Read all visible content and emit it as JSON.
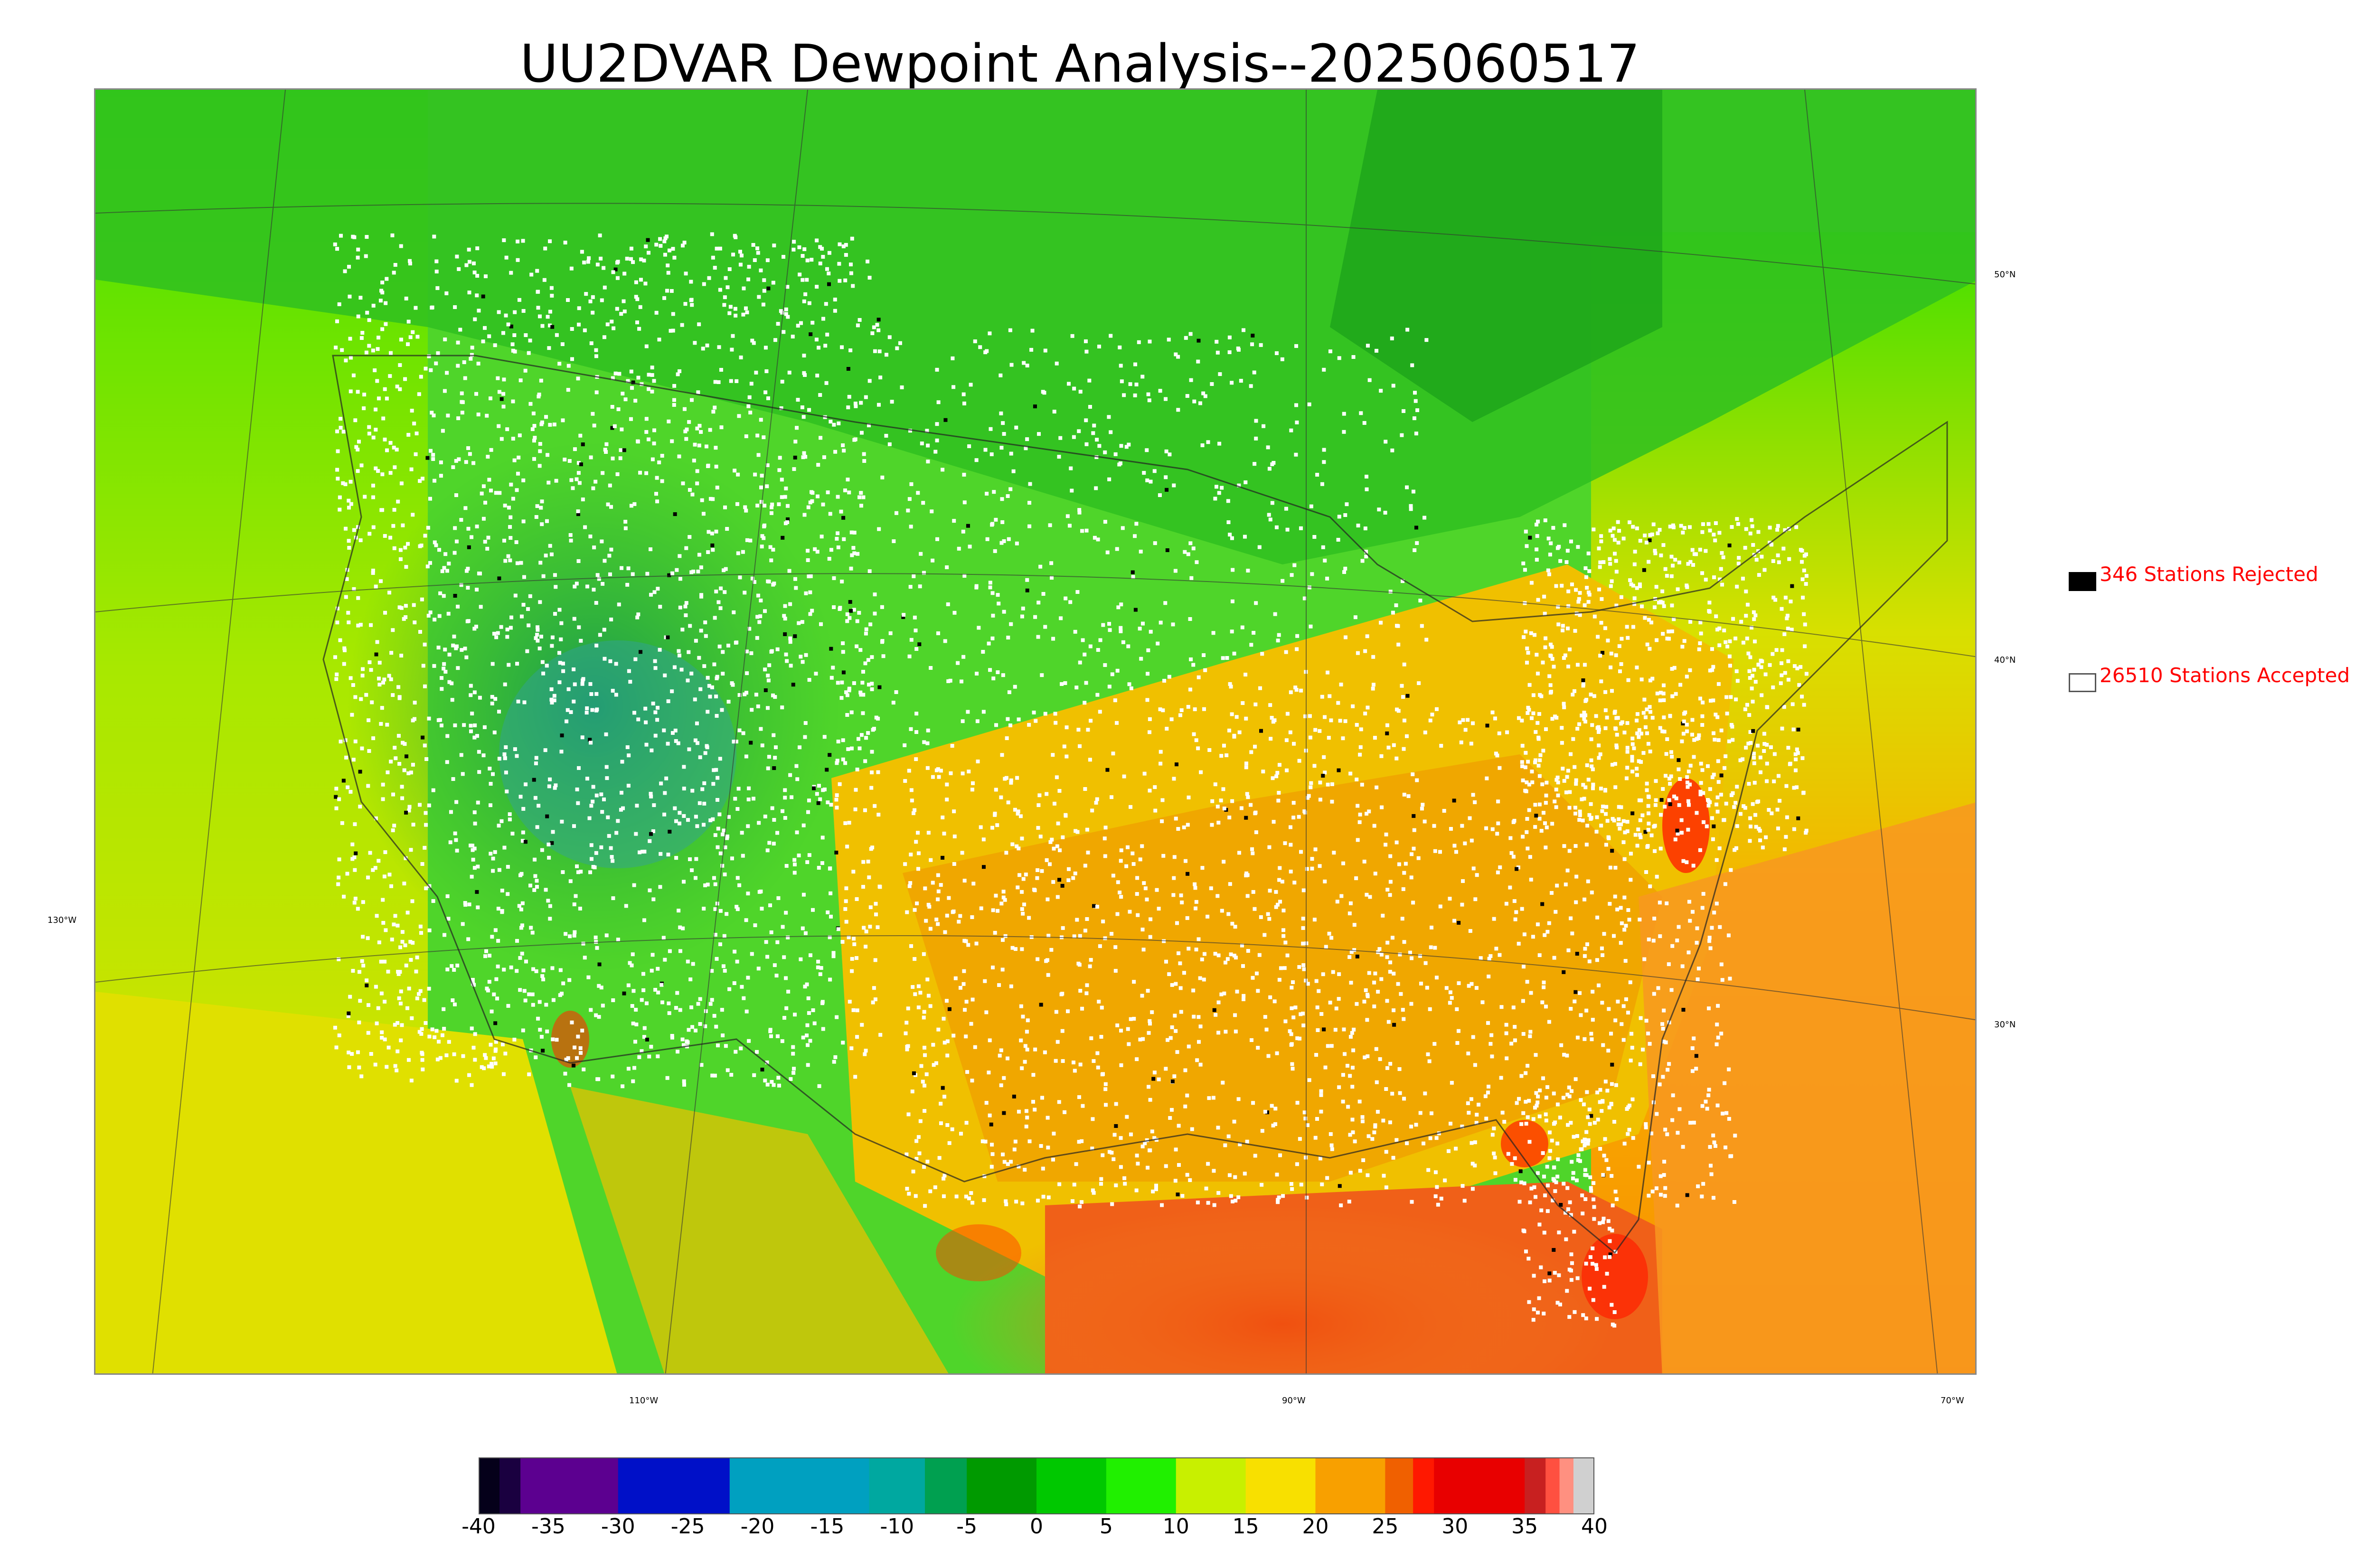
{
  "title": "UU2DVAR Dewpoint Analysis--2025060517",
  "map": {
    "lat_labels": [
      "50°N",
      "40°N",
      "30°N"
    ],
    "lon_labels": [
      "130°W",
      "110°W",
      "90°W",
      "70°W"
    ],
    "station_color_accepted": "#ffffff",
    "station_color_rejected": "#000000"
  },
  "legend": {
    "rejected_label": "346 Stations Rejected",
    "accepted_label": "26510 Stations Accepted",
    "rejected_count": 346,
    "accepted_count": 26510
  },
  "colorbar": {
    "ticks": [
      "-40",
      "-35",
      "-30",
      "-25",
      "-20",
      "-15",
      "-10",
      "-5",
      "0",
      "5",
      "10",
      "15",
      "20",
      "25",
      "30",
      "35",
      "40"
    ],
    "range": [
      -40,
      40
    ],
    "colors": [
      {
        "from": -40,
        "to": -38.5,
        "color": "#05001a"
      },
      {
        "from": -38.5,
        "to": -37,
        "color": "#1a0040"
      },
      {
        "from": -37,
        "to": -30,
        "color": "#5c0090"
      },
      {
        "from": -30,
        "to": -22,
        "color": "#0010c8"
      },
      {
        "from": -22,
        "to": -12,
        "color": "#00a0c0"
      },
      {
        "from": -12,
        "to": -8,
        "color": "#00a8a0"
      },
      {
        "from": -8,
        "to": -5,
        "color": "#00a050"
      },
      {
        "from": -5,
        "to": 0,
        "color": "#009a00"
      },
      {
        "from": 0,
        "to": 5,
        "color": "#00c800"
      },
      {
        "from": 5,
        "to": 10,
        "color": "#20f000"
      },
      {
        "from": 10,
        "to": 15,
        "color": "#c8f000"
      },
      {
        "from": 15,
        "to": 20,
        "color": "#f8e000"
      },
      {
        "from": 20,
        "to": 25,
        "color": "#f8a000"
      },
      {
        "from": 25,
        "to": 27,
        "color": "#f06000"
      },
      {
        "from": 27,
        "to": 28.5,
        "color": "#ff1800"
      },
      {
        "from": 28.5,
        "to": 35,
        "color": "#e80000"
      },
      {
        "from": 35,
        "to": 36.5,
        "color": "#c82020"
      },
      {
        "from": 36.5,
        "to": 37.5,
        "color": "#ff5040"
      },
      {
        "from": 37.5,
        "to": 38.5,
        "color": "#ff9080"
      },
      {
        "from": 38.5,
        "to": 40,
        "color": "#d0d0d0"
      }
    ]
  }
}
